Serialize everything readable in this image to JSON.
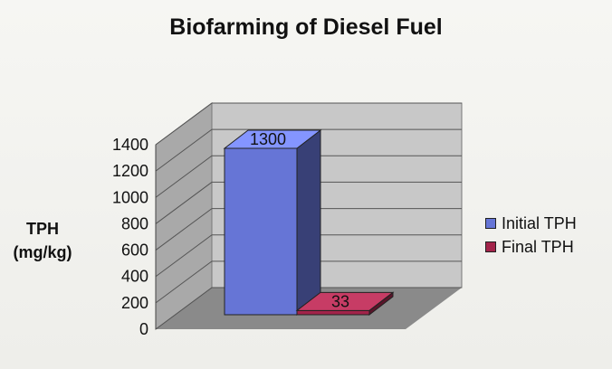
{
  "chart_data": {
    "type": "bar",
    "title": "Biofarming of Diesel Fuel",
    "ylabel_lines": [
      "TPH",
      "(mg/kg)"
    ],
    "xlabel": "",
    "ylim": [
      0,
      1400
    ],
    "yticks": [
      "1400",
      "1200",
      "1000",
      "800",
      "600",
      "400",
      "200",
      "0"
    ],
    "series": [
      {
        "name": "Initial TPH",
        "values": [
          1300
        ],
        "color": "#6675d6"
      },
      {
        "name": "Final TPH",
        "values": [
          33
        ],
        "color": "#a3244a"
      }
    ],
    "data_labels": [
      "1300",
      "33"
    ],
    "legend_position": "right",
    "grid": true,
    "style": "3d"
  }
}
